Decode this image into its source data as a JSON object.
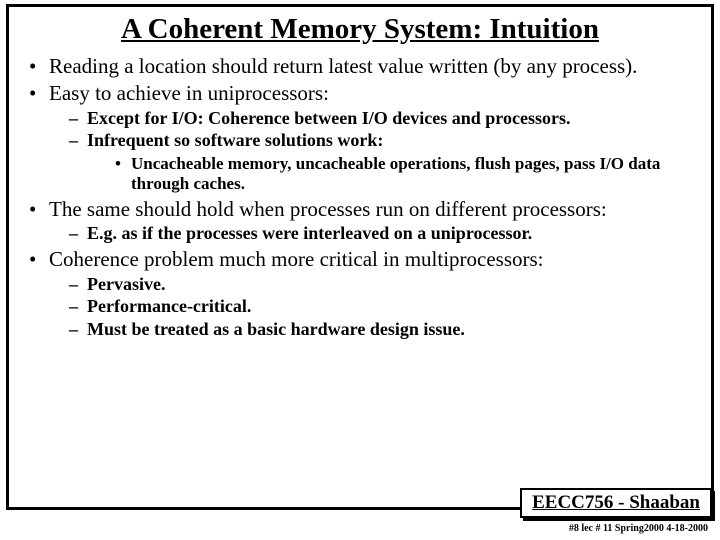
{
  "title": "A Coherent Memory System:  Intuition",
  "b1": "Reading a location should return latest value written (by any process).",
  "b2": "Easy to achieve in uniprocessors:",
  "b2a": "Except for I/O:  Coherence between I/O devices and processors.",
  "b2b": "Infrequent so software solutions work:",
  "b2b1": "Uncacheable memory, uncacheable operations, flush pages, pass I/O data through caches.",
  "b3": "The same should hold when processes run on different processors:",
  "b3a": "E.g. as if the processes were interleaved on a uniprocessor.",
  "b4": "Coherence problem much more critical in multiprocessors:",
  "b4a": "Pervasive.",
  "b4b": "Performance-critical.",
  "b4c": "Must be treated as a basic hardware design issue.",
  "footer_box": "EECC756 - Shaaban",
  "footer_line": "#8   lec # 11    Spring2000   4-18-2000"
}
